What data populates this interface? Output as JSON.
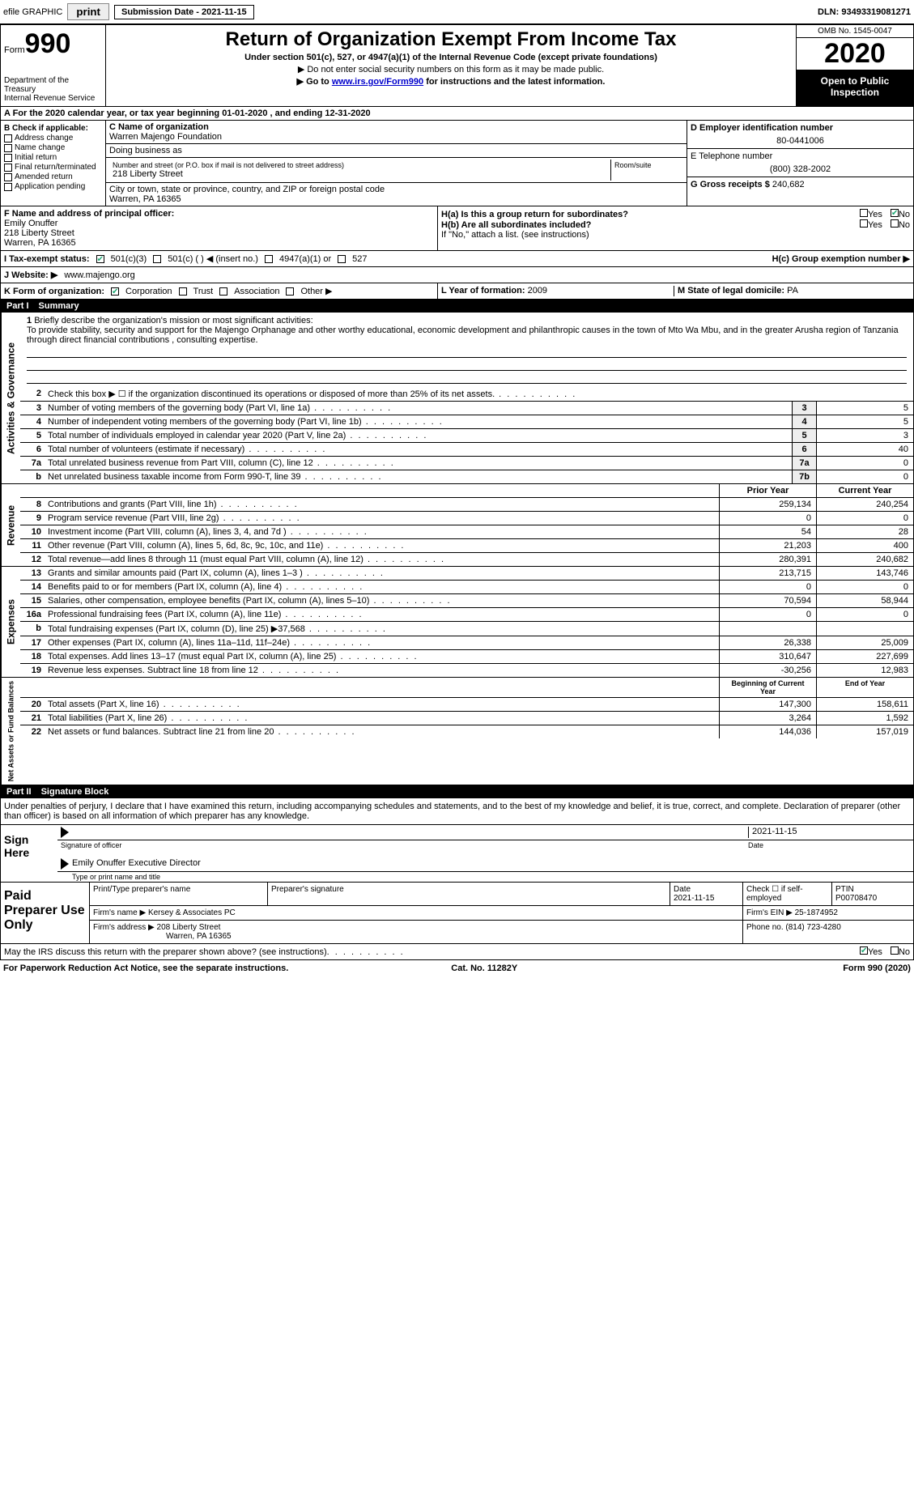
{
  "colors": {
    "link": "#0000cc",
    "black": "#000000",
    "white": "#ffffff",
    "grey_btn": "#eeeeee",
    "check_green": "#22aa77"
  },
  "topbar": {
    "efile_label": "efile GRAPHIC",
    "print_label": "print",
    "submission_label": "Submission Date - 2021-11-15",
    "dln_label": "DLN: 93493319081271"
  },
  "header": {
    "form_word": "Form",
    "form_num": "990",
    "dept": "Department of the Treasury",
    "irs": "Internal Revenue Service",
    "title": "Return of Organization Exempt From Income Tax",
    "subtitle": "Under section 501(c), 527, or 4947(a)(1) of the Internal Revenue Code (except private foundations)",
    "warn": "▶ Do not enter social security numbers on this form as it may be made public.",
    "goto_pre": "▶ Go to ",
    "goto_link": "www.irs.gov/Form990",
    "goto_post": " for instructions and the latest information.",
    "omb": "OMB No. 1545-0047",
    "year": "2020",
    "open": "Open to Public Inspection"
  },
  "row_a": "A For the 2020 calendar year, or tax year beginning 01-01-2020    , and ending 12-31-2020",
  "section_b": {
    "title": "B Check if applicable:",
    "opts": [
      "Address change",
      "Name change",
      "Initial return",
      "Final return/terminated",
      "Amended return",
      "Application pending"
    ]
  },
  "section_c": {
    "name_lab": "C Name of organization",
    "name_val": "Warren Majengo Foundation",
    "dba_lab": "Doing business as",
    "dba_val": "",
    "addr_lab": "Number and street (or P.O. box if mail is not delivered to street address)",
    "room_lab": "Room/suite",
    "addr_val": "218 Liberty Street",
    "city_lab": "City or town, state or province, country, and ZIP or foreign postal code",
    "city_val": "Warren, PA  16365"
  },
  "section_d": {
    "lab": "D Employer identification number",
    "val": "80-0441006"
  },
  "section_e": {
    "lab": "E Telephone number",
    "val": "(800) 328-2002"
  },
  "section_g": {
    "lab": "G Gross receipts $",
    "val": "240,682"
  },
  "section_f": {
    "lab": "F  Name and address of principal officer:",
    "name": "Emily Onuffer",
    "addr1": "218 Liberty Street",
    "addr2": "Warren, PA  16365"
  },
  "section_h": {
    "ha": "H(a)  Is this a group return for subordinates?",
    "hb": "H(b)  Are all subordinates included?",
    "hb_note": "If \"No,\" attach a list. (see instructions)",
    "hc": "H(c)  Group exemption number ▶",
    "yes": "Yes",
    "no": "No"
  },
  "section_i": {
    "lab": "I   Tax-exempt status:",
    "o1": "501(c)(3)",
    "o2": "501(c) (  ) ◀ (insert no.)",
    "o3": "4947(a)(1) or",
    "o4": "527"
  },
  "section_j": {
    "lab": "J   Website: ▶",
    "val": "www.majengo.org"
  },
  "section_k": {
    "lab": "K Form of organization:",
    "o1": "Corporation",
    "o2": "Trust",
    "o3": "Association",
    "o4": "Other ▶"
  },
  "section_l": {
    "lab": "L Year of formation:",
    "val": "2009"
  },
  "section_m": {
    "lab": "M State of legal domicile:",
    "val": "PA"
  },
  "part1": {
    "num": "Part I",
    "title": "Summary"
  },
  "mission": {
    "num": "1",
    "lab": "Briefly describe the organization's mission or most significant activities:",
    "text": "To provide stability, security and support for the Majengo Orphanage and other worthy educational, economic development and philanthropic causes in the town of Mto Wa Mbu, and in the greater Arusha region of Tanzania through direct financial contributions , consulting expertise."
  },
  "gov_lines": [
    {
      "n": "2",
      "d": "Check this box ▶ ☐ if the organization discontinued its operations or disposed of more than 25% of its net assets.",
      "box": "",
      "v": ""
    },
    {
      "n": "3",
      "d": "Number of voting members of the governing body (Part VI, line 1a)",
      "box": "3",
      "v": "5"
    },
    {
      "n": "4",
      "d": "Number of independent voting members of the governing body (Part VI, line 1b)",
      "box": "4",
      "v": "5"
    },
    {
      "n": "5",
      "d": "Total number of individuals employed in calendar year 2020 (Part V, line 2a)",
      "box": "5",
      "v": "3"
    },
    {
      "n": "6",
      "d": "Total number of volunteers (estimate if necessary)",
      "box": "6",
      "v": "40"
    },
    {
      "n": "7a",
      "d": "Total unrelated business revenue from Part VIII, column (C), line 12",
      "box": "7a",
      "v": "0"
    },
    {
      "n": "b",
      "d": "Net unrelated business taxable income from Form 990-T, line 39",
      "box": "7b",
      "v": "0"
    }
  ],
  "rev_hdr": {
    "py": "Prior Year",
    "cy": "Current Year"
  },
  "rev_lines": [
    {
      "n": "8",
      "d": "Contributions and grants (Part VIII, line 1h)",
      "py": "259,134",
      "cy": "240,254"
    },
    {
      "n": "9",
      "d": "Program service revenue (Part VIII, line 2g)",
      "py": "0",
      "cy": "0"
    },
    {
      "n": "10",
      "d": "Investment income (Part VIII, column (A), lines 3, 4, and 7d )",
      "py": "54",
      "cy": "28"
    },
    {
      "n": "11",
      "d": "Other revenue (Part VIII, column (A), lines 5, 6d, 8c, 9c, 10c, and 11e)",
      "py": "21,203",
      "cy": "400"
    },
    {
      "n": "12",
      "d": "Total revenue—add lines 8 through 11 (must equal Part VIII, column (A), line 12)",
      "py": "280,391",
      "cy": "240,682"
    }
  ],
  "exp_lines": [
    {
      "n": "13",
      "d": "Grants and similar amounts paid (Part IX, column (A), lines 1–3 )",
      "py": "213,715",
      "cy": "143,746"
    },
    {
      "n": "14",
      "d": "Benefits paid to or for members (Part IX, column (A), line 4)",
      "py": "0",
      "cy": "0"
    },
    {
      "n": "15",
      "d": "Salaries, other compensation, employee benefits (Part IX, column (A), lines 5–10)",
      "py": "70,594",
      "cy": "58,944"
    },
    {
      "n": "16a",
      "d": "Professional fundraising fees (Part IX, column (A), line 11e)",
      "py": "0",
      "cy": "0"
    },
    {
      "n": "b",
      "d": "Total fundraising expenses (Part IX, column (D), line 25) ▶37,568",
      "py": "",
      "cy": ""
    },
    {
      "n": "17",
      "d": "Other expenses (Part IX, column (A), lines 11a–11d, 11f–24e)",
      "py": "26,338",
      "cy": "25,009"
    },
    {
      "n": "18",
      "d": "Total expenses. Add lines 13–17 (must equal Part IX, column (A), line 25)",
      "py": "310,647",
      "cy": "227,699"
    },
    {
      "n": "19",
      "d": "Revenue less expenses. Subtract line 18 from line 12",
      "py": "-30,256",
      "cy": "12,983"
    }
  ],
  "net_hdr": {
    "py": "Beginning of Current Year",
    "cy": "End of Year"
  },
  "net_lines": [
    {
      "n": "20",
      "d": "Total assets (Part X, line 16)",
      "py": "147,300",
      "cy": "158,611"
    },
    {
      "n": "21",
      "d": "Total liabilities (Part X, line 26)",
      "py": "3,264",
      "cy": "1,592"
    },
    {
      "n": "22",
      "d": "Net assets or fund balances. Subtract line 21 from line 20",
      "py": "144,036",
      "cy": "157,019"
    }
  ],
  "part2": {
    "num": "Part II",
    "title": "Signature Block"
  },
  "sig": {
    "decl": "Under penalties of perjury, I declare that I have examined this return, including accompanying schedules and statements, and to the best of my knowledge and belief, it is true, correct, and complete. Declaration of preparer (other than officer) is based on all information of which preparer has any knowledge.",
    "here": "Sign Here",
    "sig_lab": "Signature of officer",
    "date_lab": "Date",
    "date_val": "2021-11-15",
    "name_val": "Emily Onuffer  Executive Director",
    "name_lab": "Type or print name and title"
  },
  "prep": {
    "title": "Paid Preparer Use Only",
    "h1": "Print/Type preparer's name",
    "h2": "Preparer's signature",
    "h3": "Date",
    "h3v": "2021-11-15",
    "h4": "Check ☐ if self-employed",
    "h5": "PTIN",
    "h5v": "P00708470",
    "firm_lab": "Firm's name    ▶",
    "firm_val": "Kersey & Associates PC",
    "ein_lab": "Firm's EIN ▶",
    "ein_val": "25-1874952",
    "addr_lab": "Firm's address ▶",
    "addr_val1": "208 Liberty Street",
    "addr_val2": "Warren, PA  16365",
    "phone_lab": "Phone no.",
    "phone_val": "(814) 723-4280"
  },
  "discuss": {
    "q": "May the IRS discuss this return with the preparer shown above? (see instructions)",
    "yes": "Yes",
    "no": "No"
  },
  "footer": {
    "left": "For Paperwork Reduction Act Notice, see the separate instructions.",
    "mid": "Cat. No. 11282Y",
    "right_pre": "Form ",
    "right_b": "990",
    "right_post": " (2020)"
  },
  "side_labels": {
    "gov": "Activities & Governance",
    "rev": "Revenue",
    "exp": "Expenses",
    "net": "Net Assets or Fund Balances"
  }
}
